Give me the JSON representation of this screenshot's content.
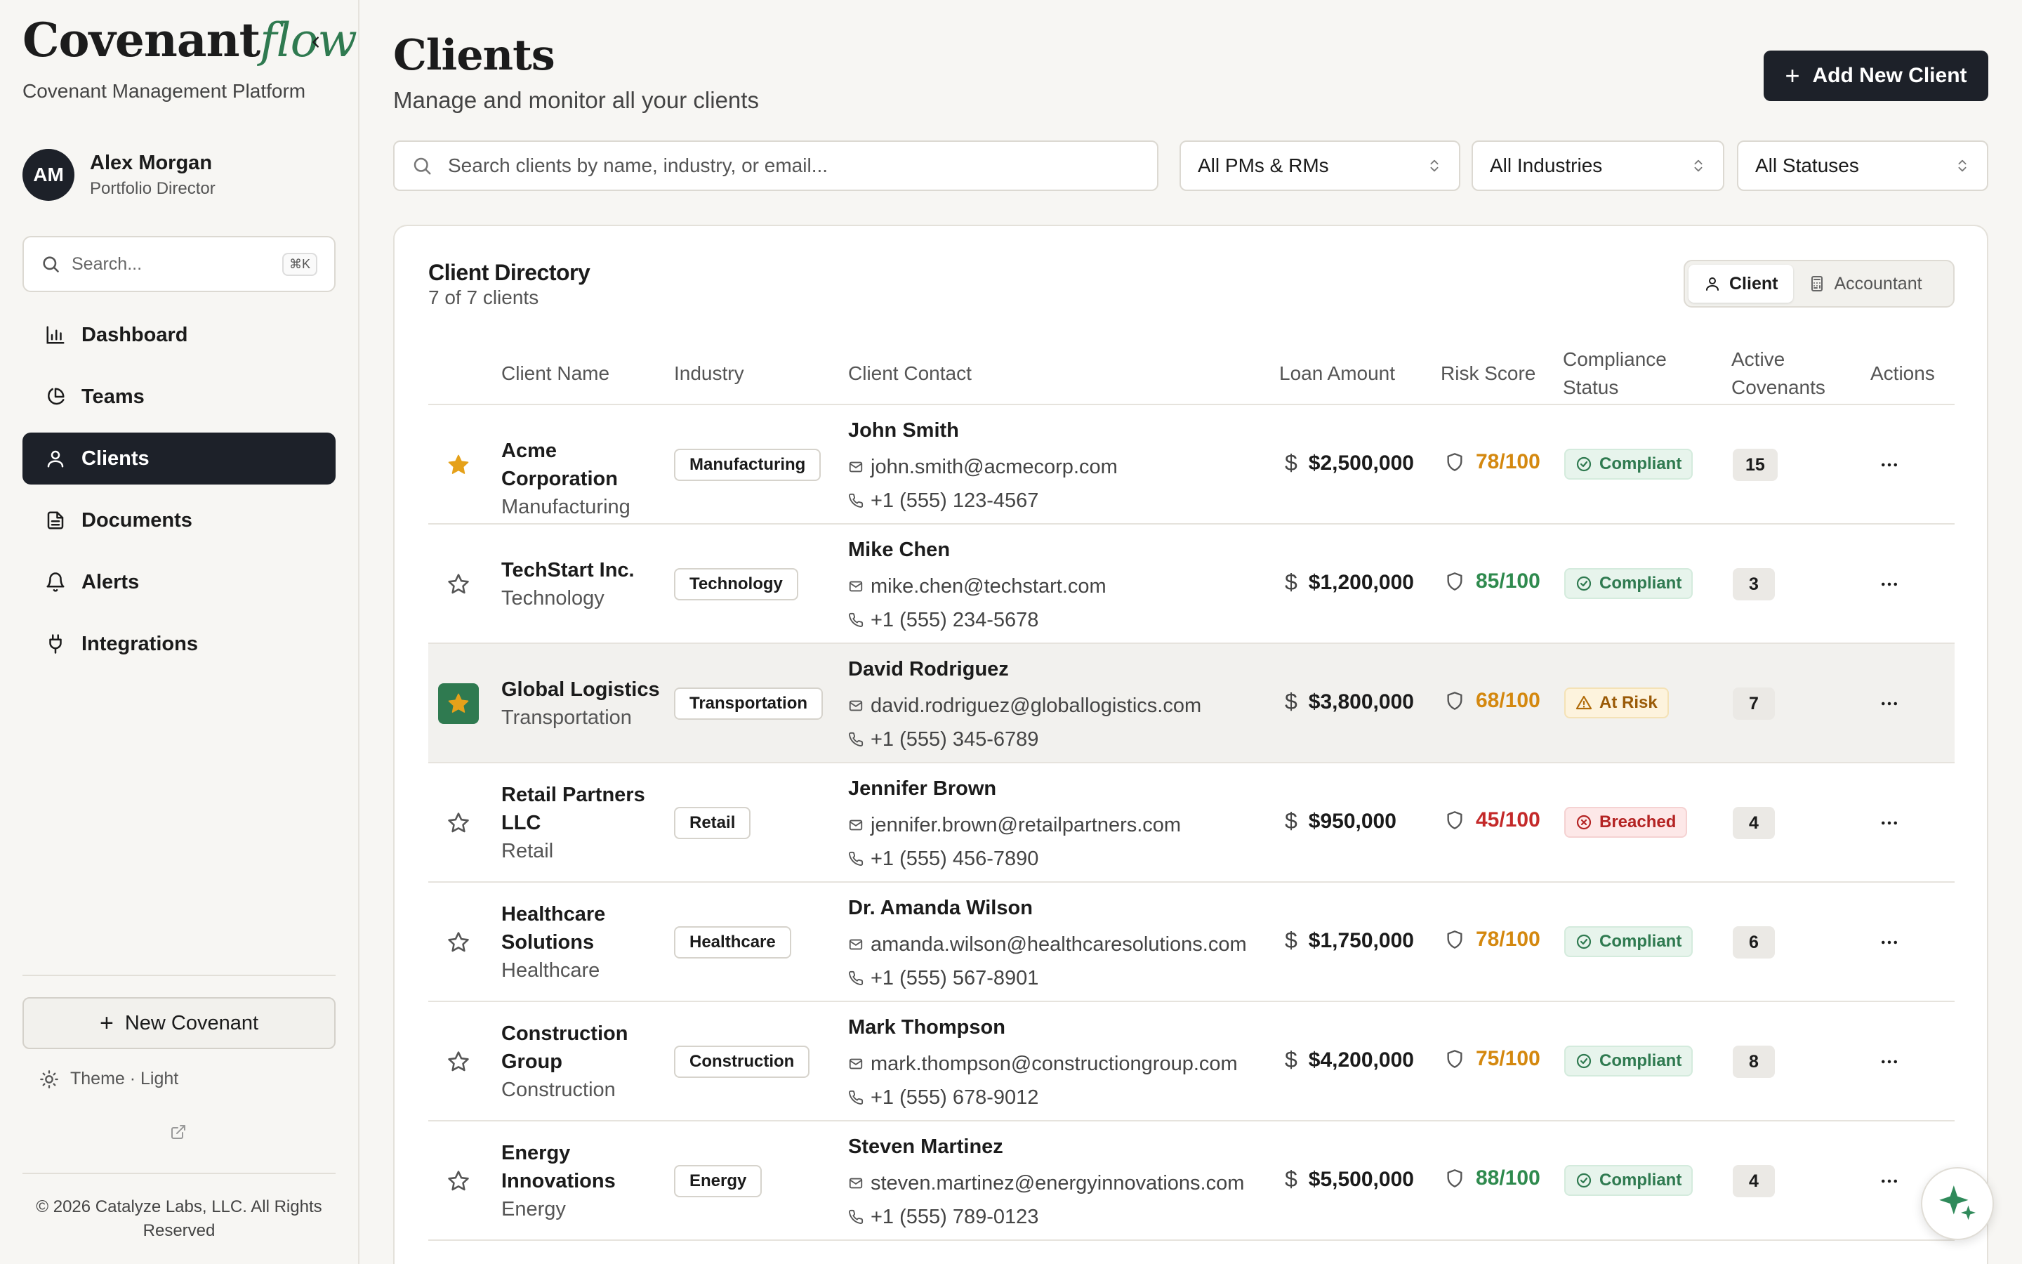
{
  "brand": {
    "main": "Covenant",
    "accent": "flow",
    "tagline": "Covenant Management Platform"
  },
  "user": {
    "initials": "AM",
    "name": "Alex Morgan",
    "role": "Portfolio Director"
  },
  "sidebar": {
    "search_placeholder": "Search...",
    "search_shortcut": "⌘K",
    "items": [
      {
        "label": "Dashboard",
        "icon": "bar-chart-icon",
        "active": false
      },
      {
        "label": "Teams",
        "icon": "pie-chart-icon",
        "active": false
      },
      {
        "label": "Clients",
        "icon": "user-icon",
        "active": true
      },
      {
        "label": "Documents",
        "icon": "document-icon",
        "active": false
      },
      {
        "label": "Alerts",
        "icon": "bell-icon",
        "active": false
      },
      {
        "label": "Integrations",
        "icon": "plug-icon",
        "active": false
      }
    ],
    "new_covenant_label": "New Covenant",
    "theme_label": "Theme · Light",
    "copyright": "© 2026 Catalyze Labs, LLC. All Rights Reserved"
  },
  "header": {
    "title": "Clients",
    "subtitle": "Manage and monitor all your clients",
    "add_button_label": "Add New Client"
  },
  "filters": {
    "search_placeholder": "Search clients by name, industry, or email...",
    "pm_rm": "All PMs & RMs",
    "industries": "All Industries",
    "statuses": "All Statuses"
  },
  "directory": {
    "title": "Client Directory",
    "count_text": "7 of 7 clients",
    "view_options": [
      "Client",
      "Accountant"
    ],
    "columns": {
      "client_name": "Client Name",
      "industry": "Industry",
      "client_contact": "Client Contact",
      "loan_amount": "Loan Amount",
      "risk_score": "Risk Score",
      "compliance_status": "Compliance Status",
      "active_covenants": "Active Covenants",
      "actions": "Actions"
    },
    "rows": [
      {
        "name": "Acme Corporation",
        "industry": "Manufacturing",
        "contact_name": "John Smith",
        "email": "john.smith@acmecorp.com",
        "phone": "+1 (555) 123-4567",
        "loan": "$2,500,000",
        "risk": "78/100",
        "risk_color": "#d4880f",
        "status": "Compliant",
        "status_kind": "ok",
        "covenants": "15",
        "starred": true,
        "highlighted": false
      },
      {
        "name": "TechStart Inc.",
        "industry": "Technology",
        "contact_name": "Mike Chen",
        "email": "mike.chen@techstart.com",
        "phone": "+1 (555) 234-5678",
        "loan": "$1,200,000",
        "risk": "85/100",
        "risk_color": "#2f8a4e",
        "status": "Compliant",
        "status_kind": "ok",
        "covenants": "3",
        "starred": false,
        "highlighted": false
      },
      {
        "name": "Global Logistics",
        "industry": "Transportation",
        "contact_name": "David Rodriguez",
        "email": "david.rodriguez@globallogistics.com",
        "phone": "+1 (555) 345-6789",
        "loan": "$3,800,000",
        "risk": "68/100",
        "risk_color": "#d4880f",
        "status": "At Risk",
        "status_kind": "warn",
        "covenants": "7",
        "starred": true,
        "highlighted": true
      },
      {
        "name": "Retail Partners LLC",
        "industry": "Retail",
        "contact_name": "Jennifer Brown",
        "email": "jennifer.brown@retailpartners.com",
        "phone": "+1 (555) 456-7890",
        "loan": "$950,000",
        "risk": "45/100",
        "risk_color": "#c42a2a",
        "status": "Breached",
        "status_kind": "bad",
        "covenants": "4",
        "starred": false,
        "highlighted": false
      },
      {
        "name": "Healthcare Solutions",
        "industry": "Healthcare",
        "contact_name": "Dr. Amanda Wilson",
        "email": "amanda.wilson@healthcaresolutions.com",
        "phone": "+1 (555) 567-8901",
        "loan": "$1,750,000",
        "risk": "78/100",
        "risk_color": "#d4880f",
        "status": "Compliant",
        "status_kind": "ok",
        "covenants": "6",
        "starred": false,
        "highlighted": false
      },
      {
        "name": "Construction Group",
        "industry": "Construction",
        "contact_name": "Mark Thompson",
        "email": "mark.thompson@constructiongroup.com",
        "phone": "+1 (555) 678-9012",
        "loan": "$4,200,000",
        "risk": "75/100",
        "risk_color": "#d4880f",
        "status": "Compliant",
        "status_kind": "ok",
        "covenants": "8",
        "starred": false,
        "highlighted": false
      },
      {
        "name": "Energy Innovations",
        "industry": "Energy",
        "contact_name": "Steven Martinez",
        "email": "steven.martinez@energyinnovations.com",
        "phone": "+1 (555) 789-0123",
        "loan": "$5,500,000",
        "risk": "88/100",
        "risk_color": "#2f8a4e",
        "status": "Compliant",
        "status_kind": "ok",
        "covenants": "4",
        "starred": false,
        "highlighted": false
      }
    ]
  },
  "colors": {
    "brand_accent": "#2f7a50",
    "dark": "#1d2129"
  }
}
